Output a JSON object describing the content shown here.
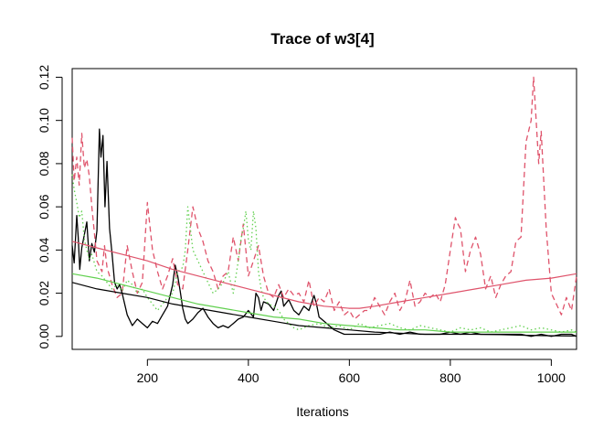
{
  "chart_data": {
    "type": "line",
    "title": "Trace of w3[4]",
    "xlabel": "Iterations",
    "ylabel": "",
    "xlim": [
      51,
      1050
    ],
    "ylim": [
      -0.006,
      0.124
    ],
    "xticks": [
      200,
      400,
      600,
      800,
      1000
    ],
    "yticks": [
      0.0,
      0.02,
      0.04,
      0.06,
      0.08,
      0.1,
      0.12
    ],
    "xtick_labels": [
      "200",
      "400",
      "600",
      "800",
      "1000"
    ],
    "ytick_labels": [
      "0.00",
      "0.02",
      "0.04",
      "0.06",
      "0.08",
      "0.10",
      "0.12"
    ],
    "grid": false,
    "legend": "none",
    "series": [
      {
        "color": "#000000",
        "style": "solid",
        "kind": "trace",
        "x": [
          51,
          55,
          60,
          63,
          66,
          70,
          75,
          80,
          85,
          90,
          95,
          100,
          105,
          108,
          112,
          116,
          120,
          125,
          130,
          135,
          140,
          145,
          150,
          160,
          170,
          180,
          190,
          200,
          210,
          220,
          230,
          240,
          250,
          255,
          260,
          265,
          270,
          275,
          280,
          290,
          300,
          310,
          320,
          330,
          340,
          350,
          360,
          370,
          380,
          390,
          400,
          410,
          415,
          420,
          425,
          430,
          440,
          450,
          460,
          465,
          470,
          480,
          490,
          500,
          510,
          520,
          530,
          535,
          540,
          550,
          560,
          570,
          580,
          590,
          600,
          620,
          640,
          660,
          680,
          700,
          720,
          740,
          760,
          780,
          800,
          820,
          840,
          860,
          880,
          900,
          920,
          940,
          960,
          980,
          1000,
          1020,
          1040,
          1050
        ],
        "y": [
          0.042,
          0.034,
          0.056,
          0.046,
          0.031,
          0.041,
          0.047,
          0.053,
          0.035,
          0.043,
          0.039,
          0.049,
          0.096,
          0.083,
          0.093,
          0.06,
          0.081,
          0.05,
          0.038,
          0.025,
          0.022,
          0.024,
          0.02,
          0.01,
          0.005,
          0.008,
          0.006,
          0.004,
          0.007,
          0.006,
          0.01,
          0.014,
          0.024,
          0.033,
          0.028,
          0.021,
          0.013,
          0.008,
          0.006,
          0.008,
          0.011,
          0.013,
          0.009,
          0.006,
          0.004,
          0.005,
          0.004,
          0.006,
          0.008,
          0.009,
          0.012,
          0.009,
          0.02,
          0.018,
          0.012,
          0.016,
          0.015,
          0.012,
          0.019,
          0.021,
          0.014,
          0.017,
          0.012,
          0.01,
          0.014,
          0.012,
          0.019,
          0.015,
          0.009,
          0.007,
          0.005,
          0.003,
          0.002,
          0.001,
          0.001,
          0.001,
          0.001,
          0.001,
          0.002,
          0.001,
          0.002,
          0.001,
          0.001,
          0.001,
          0.002,
          0.001,
          0.002,
          0.001,
          0.001,
          0.001,
          0.001,
          0.001,
          0.0,
          0.001,
          0.0,
          0.001,
          0.001,
          0.0
        ]
      },
      {
        "color": "#DF536B",
        "style": "dashed",
        "kind": "trace",
        "x": [
          51,
          55,
          60,
          65,
          70,
          75,
          80,
          85,
          90,
          95,
          100,
          110,
          115,
          120,
          125,
          130,
          140,
          150,
          160,
          170,
          180,
          190,
          200,
          210,
          220,
          230,
          240,
          250,
          260,
          270,
          280,
          290,
          300,
          310,
          320,
          330,
          340,
          350,
          360,
          370,
          380,
          390,
          400,
          410,
          420,
          430,
          440,
          450,
          460,
          470,
          480,
          490,
          500,
          510,
          520,
          530,
          540,
          550,
          560,
          570,
          580,
          590,
          600,
          610,
          620,
          630,
          640,
          650,
          660,
          670,
          680,
          690,
          700,
          710,
          720,
          730,
          740,
          750,
          760,
          770,
          780,
          790,
          800,
          810,
          815,
          820,
          830,
          840,
          850,
          860,
          870,
          880,
          890,
          900,
          910,
          920,
          930,
          940,
          950,
          960,
          965,
          970,
          975,
          980,
          990,
          1000,
          1010,
          1020,
          1030,
          1040,
          1050
        ],
        "y": [
          0.092,
          0.072,
          0.083,
          0.07,
          0.094,
          0.078,
          0.082,
          0.074,
          0.06,
          0.048,
          0.035,
          0.03,
          0.042,
          0.032,
          0.028,
          0.024,
          0.018,
          0.02,
          0.042,
          0.03,
          0.02,
          0.025,
          0.062,
          0.04,
          0.03,
          0.022,
          0.028,
          0.036,
          0.024,
          0.022,
          0.04,
          0.06,
          0.05,
          0.044,
          0.035,
          0.03,
          0.022,
          0.028,
          0.03,
          0.046,
          0.035,
          0.052,
          0.028,
          0.035,
          0.042,
          0.028,
          0.02,
          0.018,
          0.024,
          0.018,
          0.022,
          0.019,
          0.02,
          0.016,
          0.026,
          0.014,
          0.018,
          0.016,
          0.022,
          0.012,
          0.016,
          0.01,
          0.012,
          0.008,
          0.01,
          0.012,
          0.012,
          0.018,
          0.014,
          0.01,
          0.016,
          0.02,
          0.012,
          0.016,
          0.026,
          0.014,
          0.016,
          0.02,
          0.018,
          0.02,
          0.016,
          0.024,
          0.04,
          0.055,
          0.052,
          0.05,
          0.03,
          0.04,
          0.046,
          0.038,
          0.022,
          0.028,
          0.018,
          0.024,
          0.028,
          0.03,
          0.044,
          0.046,
          0.09,
          0.1,
          0.12,
          0.1,
          0.08,
          0.095,
          0.05,
          0.02,
          0.015,
          0.01,
          0.018,
          0.012,
          0.028
        ]
      },
      {
        "color": "#61D04F",
        "style": "dotted",
        "kind": "trace",
        "x": [
          51,
          55,
          60,
          65,
          70,
          75,
          80,
          85,
          90,
          100,
          110,
          120,
          130,
          140,
          150,
          160,
          170,
          180,
          190,
          200,
          210,
          220,
          230,
          240,
          250,
          260,
          270,
          275,
          280,
          285,
          290,
          300,
          310,
          320,
          330,
          340,
          350,
          360,
          370,
          380,
          385,
          390,
          395,
          400,
          405,
          410,
          415,
          420,
          425,
          430,
          440,
          450,
          460,
          470,
          480,
          490,
          500,
          520,
          540,
          560,
          580,
          600,
          620,
          640,
          660,
          680,
          700,
          720,
          740,
          760,
          780,
          800,
          820,
          840,
          860,
          880,
          900,
          920,
          940,
          960,
          980,
          1000,
          1020,
          1040,
          1050
        ],
        "y": [
          0.075,
          0.068,
          0.062,
          0.055,
          0.058,
          0.045,
          0.04,
          0.036,
          0.038,
          0.03,
          0.028,
          0.025,
          0.022,
          0.024,
          0.021,
          0.026,
          0.024,
          0.02,
          0.022,
          0.018,
          0.015,
          0.012,
          0.015,
          0.018,
          0.02,
          0.03,
          0.032,
          0.04,
          0.06,
          0.05,
          0.04,
          0.035,
          0.03,
          0.025,
          0.02,
          0.022,
          0.025,
          0.03,
          0.02,
          0.035,
          0.045,
          0.05,
          0.058,
          0.045,
          0.04,
          0.058,
          0.05,
          0.03,
          0.022,
          0.018,
          0.015,
          0.014,
          0.012,
          0.008,
          0.006,
          0.004,
          0.003,
          0.005,
          0.006,
          0.004,
          0.005,
          0.003,
          0.006,
          0.004,
          0.005,
          0.006,
          0.004,
          0.003,
          0.005,
          0.004,
          0.003,
          0.002,
          0.004,
          0.003,
          0.004,
          0.002,
          0.003,
          0.004,
          0.005,
          0.003,
          0.004,
          0.003,
          0.002,
          0.003,
          0.002
        ]
      },
      {
        "color": "#000000",
        "style": "solid",
        "kind": "smooth",
        "x": [
          51,
          100,
          150,
          200,
          250,
          300,
          350,
          400,
          450,
          500,
          550,
          600,
          650,
          700,
          750,
          800,
          850,
          900,
          950,
          1000,
          1050
        ],
        "y": [
          0.025,
          0.022,
          0.02,
          0.018,
          0.015,
          0.013,
          0.011,
          0.009,
          0.007,
          0.005,
          0.004,
          0.003,
          0.002,
          0.0015,
          0.001,
          0.001,
          0.001,
          0.0008,
          0.0005,
          0.0003,
          0.0002
        ]
      },
      {
        "color": "#DF536B",
        "style": "solid",
        "kind": "smooth",
        "x": [
          51,
          100,
          150,
          200,
          250,
          300,
          350,
          400,
          450,
          500,
          550,
          600,
          620,
          650,
          700,
          750,
          800,
          850,
          900,
          950,
          1000,
          1050
        ],
        "y": [
          0.044,
          0.041,
          0.038,
          0.035,
          0.031,
          0.028,
          0.025,
          0.022,
          0.019,
          0.016,
          0.014,
          0.013,
          0.013,
          0.014,
          0.016,
          0.018,
          0.02,
          0.022,
          0.024,
          0.026,
          0.027,
          0.029
        ]
      },
      {
        "color": "#61D04F",
        "style": "solid",
        "kind": "smooth",
        "x": [
          51,
          100,
          150,
          200,
          250,
          300,
          350,
          400,
          450,
          500,
          550,
          600,
          650,
          700,
          750,
          800,
          850,
          900,
          950,
          1000,
          1050
        ],
        "y": [
          0.029,
          0.027,
          0.024,
          0.021,
          0.018,
          0.015,
          0.013,
          0.011,
          0.009,
          0.008,
          0.006,
          0.005,
          0.004,
          0.003,
          0.003,
          0.002,
          0.002,
          0.002,
          0.002,
          0.002,
          0.002
        ]
      }
    ]
  }
}
